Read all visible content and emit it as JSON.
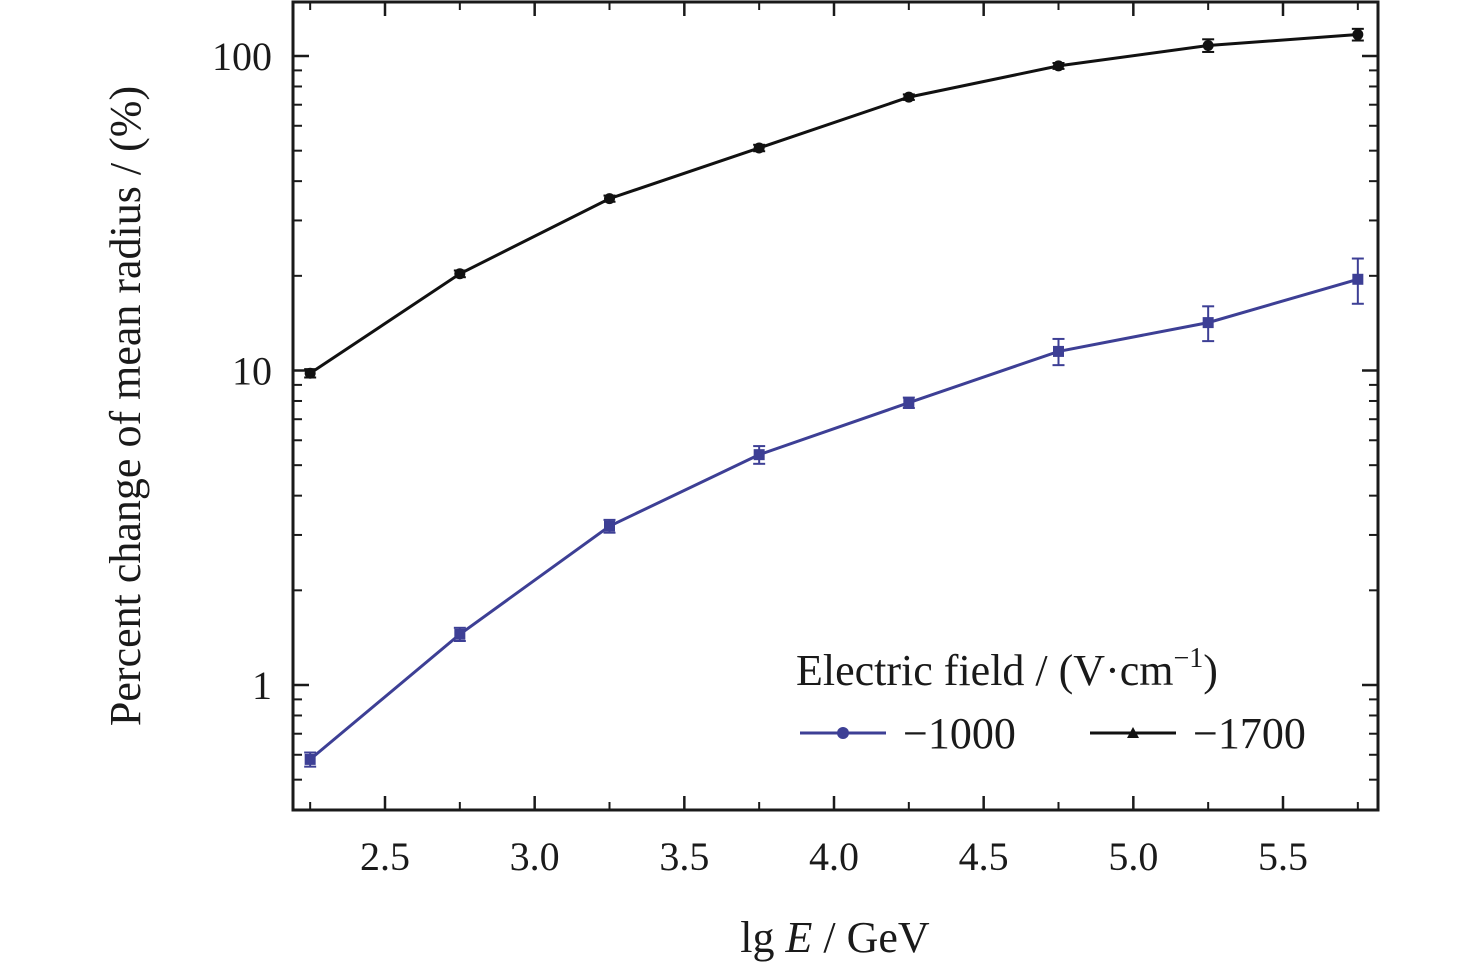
{
  "chart_data": {
    "type": "line",
    "xlabel_prefix": "lg ",
    "xlabel_italic": "E",
    "xlabel_suffix": " / GeV",
    "ylabel": "Percent change of mean radius / (%)",
    "xlim": [
      2.2,
      5.8
    ],
    "ylim": [
      0.4,
      150
    ],
    "yscale": "log",
    "grid": false,
    "legend_position": "bottom-right",
    "legend_title_prefix": "Electric field / (V·cm",
    "legend_title_sup": "−1",
    "legend_title_suffix": ")",
    "x_ticks": [
      "2.5",
      "3.0",
      "3.5",
      "4.0",
      "4.5",
      "5.0",
      "5.5"
    ],
    "x_tick_values": [
      2.5,
      3.0,
      3.5,
      4.0,
      4.5,
      5.0,
      5.5
    ],
    "y_ticks": [
      "1",
      "10",
      "100"
    ],
    "y_tick_values": [
      1,
      10,
      100
    ],
    "series": [
      {
        "name": "−1000",
        "color": "#3d3f95",
        "x": [
          2.25,
          2.75,
          3.25,
          3.75,
          4.25,
          4.75,
          5.25,
          5.75
        ],
        "y": [
          0.58,
          1.45,
          3.2,
          5.4,
          7.9,
          11.5,
          14.2,
          19.5
        ],
        "err": [
          0.03,
          0.07,
          0.15,
          0.35,
          0.3,
          1.1,
          1.8,
          3.2
        ]
      },
      {
        "name": "−1700",
        "color": "#111111",
        "x": [
          2.25,
          2.75,
          3.25,
          3.75,
          4.25,
          4.75,
          5.25,
          5.75
        ],
        "y": [
          9.8,
          20.3,
          35.2,
          51.0,
          74.0,
          93.0,
          108.0,
          117.0
        ],
        "err": [
          0.3,
          0.5,
          0.8,
          1.2,
          1.5,
          2.0,
          5.0,
          5.0
        ]
      }
    ]
  }
}
